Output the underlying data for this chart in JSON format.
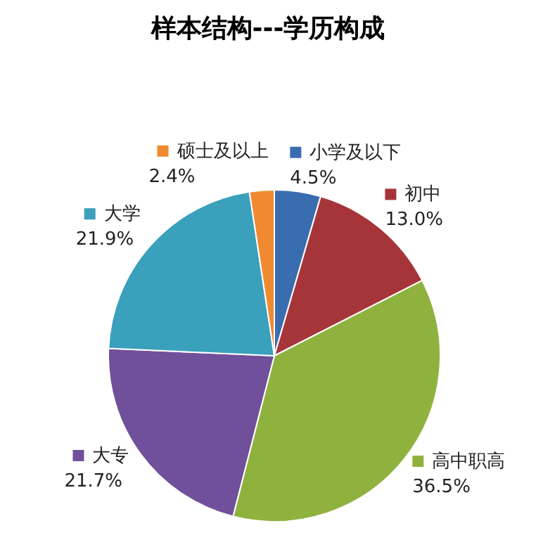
{
  "chart_data": {
    "type": "pie",
    "title": "样本结构---学历构成",
    "categories": [
      "小学及以下",
      "初中",
      "高中职高",
      "大专",
      "大学",
      "硕士及以上"
    ],
    "values": [
      4.5,
      13.0,
      36.5,
      21.7,
      21.9,
      2.4
    ],
    "value_labels": [
      "4.5%",
      "13.0%",
      "36.5%",
      "21.7%",
      "21.9%",
      "2.4%"
    ],
    "colors": [
      "#3a6db0",
      "#a6353a",
      "#8fb23f",
      "#70509a",
      "#3aa0bc",
      "#ef8a30"
    ],
    "legend": "top"
  }
}
